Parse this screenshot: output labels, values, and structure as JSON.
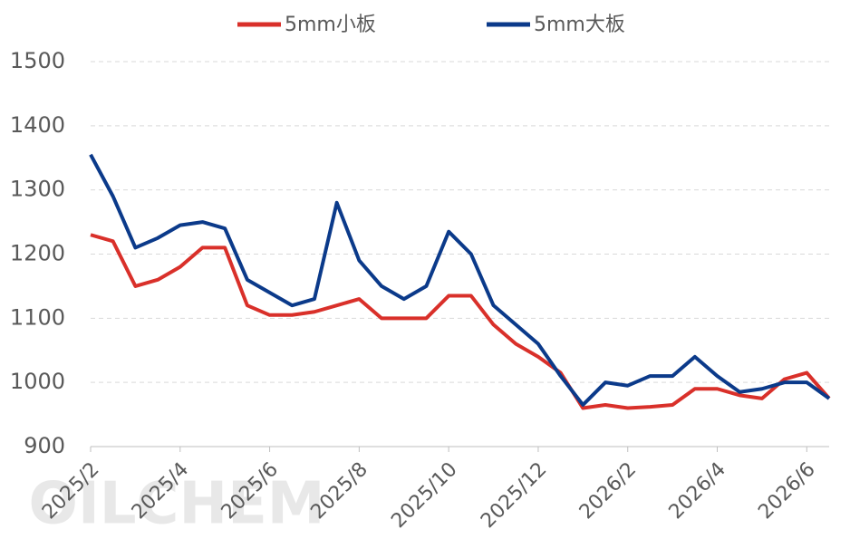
{
  "chart_data": {
    "type": "line",
    "watermark": "OILCHEM",
    "categories": [
      "2025/2",
      null,
      null,
      null,
      "2025/4",
      null,
      null,
      null,
      "2025/6",
      null,
      null,
      null,
      "2025/8",
      null,
      null,
      null,
      "2025/10",
      null,
      null,
      null,
      "2025/12",
      null,
      null,
      null,
      "2026/2",
      null,
      null,
      null,
      "2026/4",
      null,
      null,
      null,
      "2026/6",
      null
    ],
    "series": [
      {
        "name": "5mm小板",
        "color": "#d9302a",
        "values": [
          1230,
          1220,
          1150,
          1160,
          1180,
          1210,
          1210,
          1120,
          1105,
          1105,
          1110,
          1120,
          1130,
          1100,
          1100,
          1100,
          1135,
          1135,
          1090,
          1060,
          1040,
          1015,
          960,
          965,
          960,
          962,
          965,
          990,
          990,
          980,
          975,
          1005,
          1015,
          975
        ]
      },
      {
        "name": "5mm大板",
        "color": "#0b3a8a",
        "values": [
          1355,
          1290,
          1210,
          1225,
          1245,
          1250,
          1240,
          1160,
          1140,
          1120,
          1130,
          1280,
          1190,
          1150,
          1130,
          1150,
          1235,
          1200,
          1120,
          1090,
          1060,
          1010,
          965,
          1000,
          995,
          1010,
          1010,
          1040,
          1010,
          985,
          990,
          1000,
          1000,
          975
        ]
      }
    ],
    "ylim": [
      900,
      1500
    ],
    "yticks": [
      900,
      1000,
      1100,
      1200,
      1300,
      1400,
      1500
    ],
    "grid": true
  }
}
